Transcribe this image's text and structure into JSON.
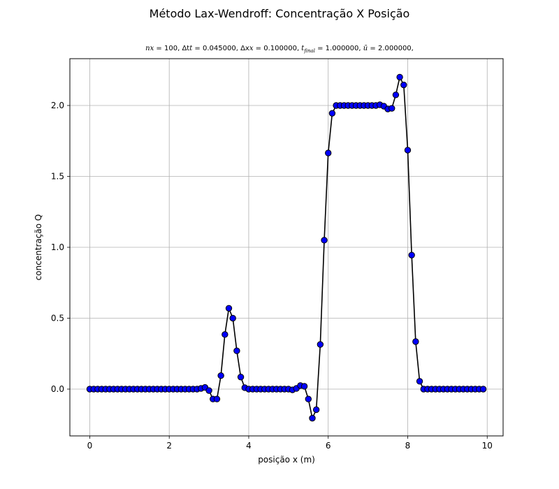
{
  "figure": {
    "title": "Método Lax-Wendroff: Concentração X Posição"
  },
  "params": {
    "nx_label": "nx",
    "nx_value": "100",
    "dt_label": "Δt",
    "dt_value": "0.045000",
    "dx_label": "Δx",
    "dx_value": "0.100000",
    "tfinal_label": "t",
    "tfinal_sub": "final",
    "tfinal_value": "1.000000",
    "ubar_label": "ū",
    "ubar_value": "2.000000"
  },
  "chart_data": {
    "type": "line",
    "title": "Método Lax-Wendroff: Concentração X Posição",
    "subtitle": "nx = 100, Δt = 0.045000, Δx = 0.100000, t_final = 1.000000, ū = 2.000000,",
    "xlabel": "posição x (m)",
    "ylabel": "concentração Q",
    "xlim": [
      -0.5,
      10.4
    ],
    "ylim": [
      -0.33,
      2.33
    ],
    "x_ticks": [
      0,
      2,
      4,
      6,
      8,
      10
    ],
    "x_tick_labels": [
      "0",
      "2",
      "4",
      "6",
      "8",
      "10"
    ],
    "y_ticks": [
      0.0,
      0.5,
      1.0,
      1.5,
      2.0
    ],
    "y_tick_labels": [
      "0.0",
      "0.5",
      "1.0",
      "1.5",
      "2.0"
    ],
    "grid": true,
    "line_color": "#000000",
    "marker_face_color": "#0000ff",
    "marker_edge_color": "#000000",
    "series": [
      {
        "x": [
          0.0,
          0.1,
          0.2,
          0.3,
          0.4,
          0.5,
          0.6,
          0.7,
          0.8,
          0.9,
          1.0,
          1.1,
          1.2,
          1.3,
          1.4,
          1.5,
          1.6,
          1.7,
          1.8,
          1.9,
          2.0,
          2.1,
          2.2,
          2.3,
          2.4,
          2.5,
          2.6,
          2.7,
          2.8,
          2.9,
          3.0,
          3.1,
          3.2,
          3.3,
          3.4,
          3.5,
          3.6,
          3.7,
          3.8,
          3.9,
          4.0,
          4.1,
          4.2,
          4.3,
          4.4,
          4.5,
          4.6,
          4.7,
          4.8,
          4.9,
          5.0,
          5.1,
          5.2,
          5.3,
          5.4,
          5.5,
          5.6,
          5.7,
          5.8,
          5.9,
          6.0,
          6.1,
          6.2,
          6.3,
          6.4,
          6.5,
          6.6,
          6.7,
          6.8,
          6.9,
          7.0,
          7.1,
          7.2,
          7.3,
          7.4,
          7.5,
          7.6,
          7.7,
          7.8,
          7.9,
          8.0,
          8.1,
          8.2,
          8.3,
          8.4,
          8.5,
          8.6,
          8.7,
          8.8,
          8.9,
          9.0,
          9.1,
          9.2,
          9.3,
          9.4,
          9.5,
          9.6,
          9.7,
          9.8,
          9.9
        ],
        "y": [
          0,
          0,
          0,
          0,
          0,
          0,
          0,
          0,
          0,
          0,
          0,
          0,
          0,
          0,
          0,
          0,
          0,
          0,
          0,
          0,
          0,
          0,
          0,
          0,
          0,
          0,
          0,
          0,
          0.005,
          0.012,
          -0.01,
          -0.07,
          -0.07,
          0.095,
          0.385,
          0.57,
          0.5,
          0.27,
          0.085,
          0.01,
          0,
          0,
          0,
          0,
          0,
          0,
          0,
          0,
          0,
          0,
          0,
          -0.005,
          0.005,
          0.025,
          0.02,
          -0.07,
          -0.205,
          -0.145,
          0.315,
          1.05,
          1.665,
          1.945,
          2.0,
          2.0,
          2.0,
          2.0,
          2.0,
          2.0,
          2.0,
          2.0,
          2.0,
          2.0,
          2.0,
          2.005,
          1.995,
          1.975,
          1.98,
          2.075,
          2.2,
          2.145,
          1.685,
          0.945,
          0.335,
          0.055,
          0,
          0,
          0,
          0,
          0,
          0,
          0,
          0,
          0,
          0,
          0,
          0,
          0,
          0,
          0,
          0
        ]
      }
    ]
  }
}
